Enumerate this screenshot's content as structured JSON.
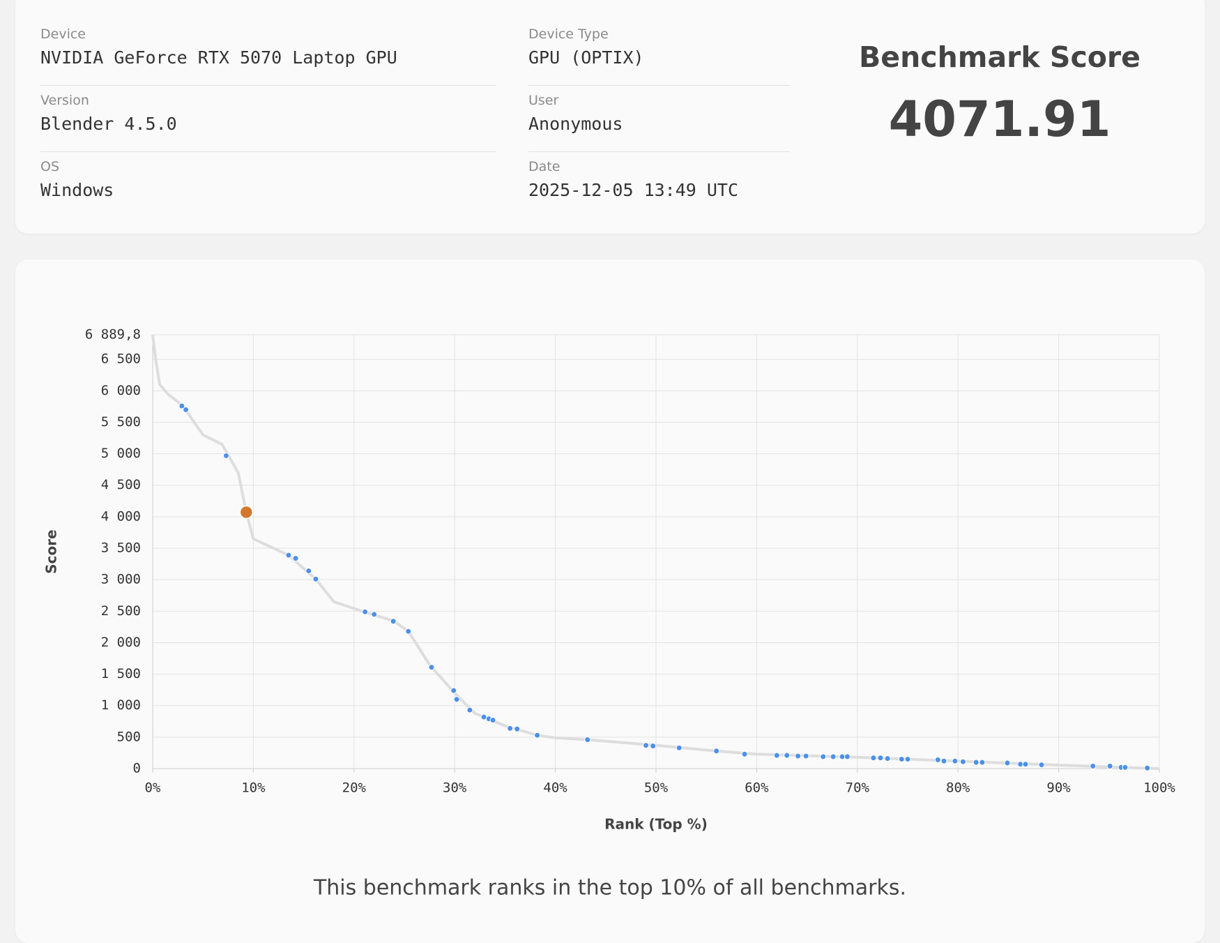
{
  "header": {
    "fields": [
      {
        "label": "Device",
        "value": "NVIDIA GeForce RTX 5070 Laptop GPU"
      },
      {
        "label": "Device Type",
        "value": "GPU (OPTIX)"
      },
      {
        "label": "Version",
        "value": "Blender 4.5.0"
      },
      {
        "label": "User",
        "value": "Anonymous"
      },
      {
        "label": "OS",
        "value": "Windows"
      },
      {
        "label": "Date",
        "value": "2025-12-05 13:49 UTC"
      }
    ],
    "score_title": "Benchmark Score",
    "score": 4071.91
  },
  "chart_data": {
    "type": "scatter",
    "x_label": "Rank (Top %)",
    "y_label": "Score",
    "xlim": [
      0,
      100
    ],
    "ylim": [
      0,
      6889.8
    ],
    "xticks": [
      {
        "value": 0,
        "label": "0%"
      },
      {
        "value": 10,
        "label": "10%"
      },
      {
        "value": 20,
        "label": "20%"
      },
      {
        "value": 30,
        "label": "30%"
      },
      {
        "value": 40,
        "label": "40%"
      },
      {
        "value": 50,
        "label": "50%"
      },
      {
        "value": 60,
        "label": "60%"
      },
      {
        "value": 70,
        "label": "70%"
      },
      {
        "value": 80,
        "label": "80%"
      },
      {
        "value": 90,
        "label": "90%"
      },
      {
        "value": 100,
        "label": "100%"
      }
    ],
    "yticks": [
      {
        "value": 0,
        "label": "0"
      },
      {
        "value": 500,
        "label": "500"
      },
      {
        "value": 1000,
        "label": "1 000"
      },
      {
        "value": 1500,
        "label": "1 500"
      },
      {
        "value": 2000,
        "label": "2 000"
      },
      {
        "value": 2500,
        "label": "2 500"
      },
      {
        "value": 3000,
        "label": "3 000"
      },
      {
        "value": 3500,
        "label": "3 500"
      },
      {
        "value": 4000,
        "label": "4 000"
      },
      {
        "value": 4500,
        "label": "4 500"
      },
      {
        "value": 5000,
        "label": "5 000"
      },
      {
        "value": 5500,
        "label": "5 500"
      },
      {
        "value": 6000,
        "label": "6 000"
      },
      {
        "value": 6500,
        "label": "6 500"
      },
      {
        "value": 6889.8,
        "label": "6 889,8"
      }
    ],
    "grid": true,
    "curve": {
      "color": "#dddddd",
      "x": [
        0,
        0.3,
        0.7,
        1.5,
        3,
        5,
        6.9,
        8.5,
        9.3,
        10,
        12,
        13.5,
        16.2,
        18,
        21,
        24,
        25.4,
        27.5,
        30,
        32,
        35,
        38.2,
        40,
        43.2,
        50,
        56,
        60,
        70,
        80,
        90,
        100
      ],
      "y": [
        6889.8,
        6500,
        6100,
        5950,
        5760,
        5300,
        5150,
        4700,
        4070,
        3650,
        3500,
        3390,
        3010,
        2650,
        2490,
        2340,
        2180,
        1650,
        1200,
        880,
        680,
        530,
        490,
        460,
        370,
        280,
        230,
        180,
        120,
        55,
        0
      ]
    },
    "points": {
      "color": "#4e90e8",
      "x": [
        2.9,
        3.3,
        7.3,
        13.5,
        14.2,
        15.5,
        16.2,
        21.1,
        22.0,
        23.9,
        25.4,
        27.7,
        29.9,
        30.2,
        31.5,
        32.9,
        33.4,
        33.8,
        35.5,
        36.2,
        38.2,
        43.2,
        49.0,
        49.7,
        52.3,
        56.0,
        58.8,
        62.0,
        63.0,
        64.1,
        64.9,
        66.6,
        67.6,
        68.5,
        69.0,
        71.6,
        72.3,
        73.0,
        74.4,
        75.0,
        78.0,
        78.6,
        79.7,
        80.5,
        81.8,
        82.4,
        84.9,
        86.2,
        86.7,
        88.3,
        93.4,
        95.1,
        96.2,
        96.6,
        98.8
      ],
      "y": [
        5760,
        5700,
        4970,
        3390,
        3340,
        3140,
        3010,
        2490,
        2450,
        2340,
        2180,
        1610,
        1240,
        1100,
        930,
        820,
        790,
        770,
        640,
        630,
        530,
        460,
        370,
        360,
        330,
        280,
        230,
        210,
        210,
        200,
        200,
        190,
        190,
        190,
        190,
        170,
        170,
        160,
        150,
        150,
        140,
        120,
        120,
        110,
        100,
        100,
        90,
        70,
        70,
        60,
        40,
        40,
        20,
        20,
        10
      ]
    },
    "highlight": {
      "color": "#d2782e",
      "x": 9.3,
      "y": 4071.91
    }
  },
  "caption": "This benchmark ranks in the top 10% of all benchmarks."
}
